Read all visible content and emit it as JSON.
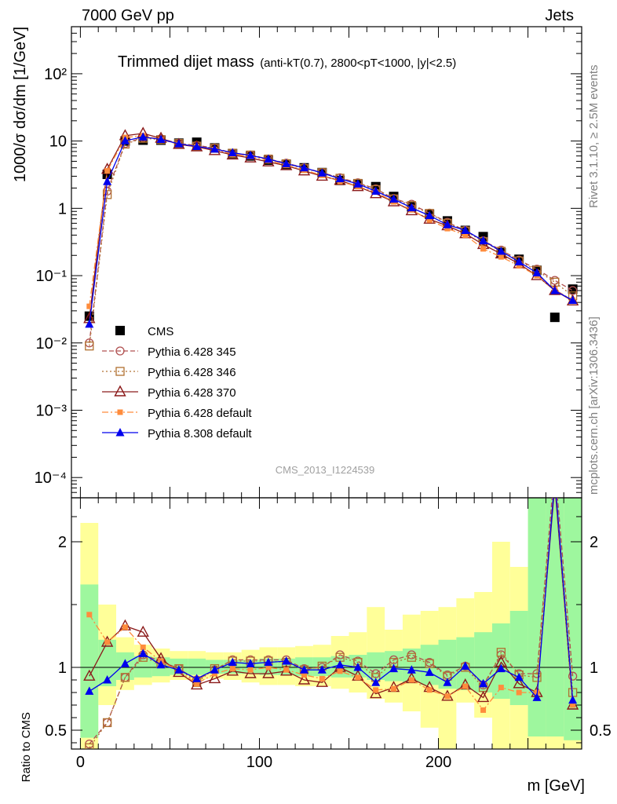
{
  "header": {
    "energy_label": "7000 GeV pp",
    "process_label": "Jets"
  },
  "side": {
    "rivet_label": "Rivet 3.1.10, ≥ 2.5M events",
    "mcplots_label": "mcplots.cern.ch [arXiv:1306.3436]"
  },
  "colors": {
    "cms": "#000000",
    "p345": "#b05050",
    "p346": "#b07030",
    "p370": "#8b1a1a",
    "p64def": "#ff8c3c",
    "p8": "#0000ee",
    "band_inner": "#9ef79e",
    "band_outer": "#ffff99"
  },
  "chart_data": [
    {
      "type": "line",
      "title_main": "Trimmed dijet mass",
      "title_sub": "(anti-kT(0.7), 2800<pT<1000, |y|<2.5)",
      "ylabel": "1000/σ dσ/dm [1/GeV]",
      "yscale": "log",
      "ylim": [
        5e-05,
        500
      ],
      "xlim": [
        -5,
        280
      ],
      "yticks": [
        "10⁻⁴",
        "10⁻³",
        "10⁻²",
        "10⁻¹",
        "1",
        "10",
        "10²"
      ],
      "analysis_label": "CMS_2013_I1224539",
      "x": [
        5,
        15,
        25,
        35,
        45,
        55,
        65,
        75,
        85,
        95,
        105,
        115,
        125,
        135,
        145,
        155,
        165,
        175,
        185,
        195,
        205,
        215,
        225,
        235,
        245,
        255,
        265,
        275
      ],
      "series": [
        {
          "name": "CMS",
          "key": "cms",
          "marker": "square-filled",
          "dash": "",
          "values": [
            0.025,
            3.2,
            10.0,
            10.3,
            10.3,
            9.3,
            9.6,
            7.9,
            6.5,
            6.0,
            5.2,
            4.5,
            4.0,
            3.4,
            2.6,
            2.3,
            2.1,
            1.5,
            1.05,
            0.82,
            0.65,
            0.47,
            0.38,
            0.22,
            0.175,
            0.12,
            0.024,
            0.063
          ]
        },
        {
          "name": "Pythia 6.428 345",
          "key": "p345",
          "marker": "circle-open",
          "dash": "6,3",
          "values": [
            0.01,
            1.8,
            9.2,
            11.3,
            10.8,
            9.2,
            8.6,
            7.9,
            6.6,
            6.2,
            5.4,
            4.7,
            4.0,
            3.4,
            2.85,
            2.4,
            1.95,
            1.4,
            1.15,
            0.85,
            0.62,
            0.47,
            0.33,
            0.24,
            0.17,
            0.125,
            0.085,
            0.06
          ]
        },
        {
          "name": "Pythia 6.428 346",
          "key": "p346",
          "marker": "square-open",
          "dash": "2,3",
          "values": [
            0.009,
            1.6,
            9.0,
            11.0,
            10.5,
            9.2,
            8.4,
            7.8,
            6.6,
            6.2,
            5.4,
            4.6,
            3.9,
            3.4,
            2.8,
            2.35,
            1.9,
            1.38,
            1.1,
            0.84,
            0.6,
            0.46,
            0.32,
            0.23,
            0.165,
            0.12,
            0.08,
            0.05
          ]
        },
        {
          "name": "Pythia 6.428 370",
          "key": "p370",
          "marker": "triangle-open",
          "dash": "",
          "values": [
            0.023,
            3.8,
            12.0,
            13.0,
            11.0,
            8.9,
            8.2,
            7.2,
            6.2,
            5.6,
            4.9,
            4.3,
            3.6,
            3.0,
            2.6,
            2.1,
            1.65,
            1.25,
            0.92,
            0.69,
            0.55,
            0.42,
            0.29,
            0.21,
            0.15,
            0.1,
            0.06,
            0.042
          ]
        },
        {
          "name": "Pythia 6.428 default",
          "key": "p64def",
          "marker": "square-small-filled",
          "dash": "8,3,2,3",
          "values": [
            0.035,
            3.6,
            11.3,
            12.0,
            10.5,
            9.0,
            8.3,
            7.5,
            6.4,
            5.9,
            5.2,
            4.4,
            3.7,
            3.1,
            2.5,
            2.1,
            1.75,
            1.25,
            0.95,
            0.67,
            0.5,
            0.4,
            0.25,
            0.19,
            0.14,
            0.1,
            0.062,
            0.043
          ]
        },
        {
          "name": "Pythia 8.308 default",
          "key": "p8",
          "marker": "triangle-filled",
          "dash": "",
          "values": [
            0.019,
            2.5,
            10.1,
            11.5,
            10.6,
            9.1,
            8.3,
            7.6,
            6.7,
            6.1,
            5.4,
            4.6,
            4.0,
            3.35,
            2.75,
            2.3,
            1.8,
            1.37,
            1.02,
            0.78,
            0.57,
            0.47,
            0.33,
            0.23,
            0.16,
            0.11,
            0.06,
            0.043
          ]
        }
      ]
    },
    {
      "type": "line",
      "ylabel": "Ratio to CMS",
      "xlabel": "m [GeV]",
      "ylim": [
        0.35,
        2.35
      ],
      "xlim": [
        -5,
        280
      ],
      "reference_line": 1,
      "x": [
        5,
        15,
        25,
        35,
        45,
        55,
        65,
        75,
        85,
        95,
        105,
        115,
        125,
        135,
        145,
        155,
        165,
        175,
        185,
        195,
        205,
        215,
        225,
        235,
        245,
        255,
        265,
        275
      ],
      "band_edges": [
        0,
        10,
        20,
        30,
        40,
        50,
        60,
        70,
        80,
        90,
        100,
        110,
        120,
        130,
        140,
        150,
        160,
        170,
        180,
        190,
        200,
        210,
        220,
        230,
        240,
        250,
        260,
        270,
        280
      ],
      "band_inner": [
        [
          0.44,
          1.66
        ],
        [
          0.85,
          1.22
        ],
        [
          0.9,
          1.12
        ],
        [
          0.92,
          1.09
        ],
        [
          0.93,
          1.08
        ],
        [
          0.94,
          1.07
        ],
        [
          0.94,
          1.07
        ],
        [
          0.95,
          1.06
        ],
        [
          0.95,
          1.06
        ],
        [
          0.95,
          1.06
        ],
        [
          0.94,
          1.07
        ],
        [
          0.94,
          1.07
        ],
        [
          0.93,
          1.08
        ],
        [
          0.93,
          1.08
        ],
        [
          0.92,
          1.09
        ],
        [
          0.92,
          1.1
        ],
        [
          0.9,
          1.12
        ],
        [
          0.89,
          1.13
        ],
        [
          0.88,
          1.15
        ],
        [
          0.86,
          1.18
        ],
        [
          0.83,
          1.22
        ],
        [
          0.82,
          1.24
        ],
        [
          0.8,
          1.28
        ],
        [
          0.75,
          1.35
        ],
        [
          0.7,
          1.45
        ],
        [
          0.45,
          2.35
        ],
        [
          0.45,
          2.35
        ],
        [
          0.42,
          2.35
        ]
      ],
      "band_outer": [
        [
          0.35,
          2.15
        ],
        [
          0.7,
          1.5
        ],
        [
          0.82,
          1.24
        ],
        [
          0.86,
          1.18
        ],
        [
          0.88,
          1.15
        ],
        [
          0.9,
          1.13
        ],
        [
          0.9,
          1.13
        ],
        [
          0.91,
          1.12
        ],
        [
          0.9,
          1.12
        ],
        [
          0.88,
          1.14
        ],
        [
          0.86,
          1.16
        ],
        [
          0.86,
          1.16
        ],
        [
          0.85,
          1.17
        ],
        [
          0.85,
          1.18
        ],
        [
          0.83,
          1.25
        ],
        [
          0.8,
          1.28
        ],
        [
          0.75,
          1.48
        ],
        [
          0.72,
          1.3
        ],
        [
          0.65,
          1.42
        ],
        [
          0.52,
          1.45
        ],
        [
          0.35,
          1.48
        ],
        [
          0.72,
          1.55
        ],
        [
          0.6,
          1.6
        ],
        [
          0.35,
          2.0
        ],
        [
          0.35,
          1.8
        ],
        [
          0.35,
          2.35
        ],
        [
          0.35,
          2.35
        ],
        [
          0.35,
          2.35
        ]
      ],
      "series": [
        {
          "name": "Pythia 6.428 345",
          "key": "p345",
          "marker": "circle-open",
          "dash": "6,3",
          "values": [
            0.39,
            0.56,
            0.92,
            1.1,
            1.05,
            0.99,
            0.9,
            0.98,
            1.06,
            1.06,
            1.06,
            1.06,
            0.99,
            1.0,
            1.1,
            1.05,
            0.95,
            1.06,
            1.1,
            1.04,
            0.94,
            1.01,
            0.86,
            1.1,
            0.95,
            0.95,
            2.6,
            0.93
          ]
        },
        {
          "name": "Pythia 6.428 346",
          "key": "p346",
          "marker": "square-open",
          "dash": "2,3",
          "values": [
            0.36,
            0.56,
            0.92,
            1.08,
            1.03,
            0.99,
            0.88,
            0.99,
            1.05,
            1.05,
            1.05,
            1.04,
            0.98,
            1.01,
            1.08,
            1.04,
            0.92,
            1.04,
            1.08,
            1.03,
            0.93,
            1.0,
            0.84,
            1.12,
            0.94,
            0.92,
            2.5,
            0.8
          ]
        },
        {
          "name": "Pythia 6.428 370",
          "key": "p370",
          "marker": "triangle-open",
          "dash": "",
          "values": [
            0.93,
            1.2,
            1.33,
            1.28,
            1.07,
            0.96,
            0.86,
            0.91,
            0.97,
            0.95,
            0.95,
            0.97,
            0.9,
            0.88,
            1.0,
            0.93,
            0.79,
            0.84,
            0.91,
            0.84,
            0.77,
            0.86,
            0.76,
            1.04,
            0.87,
            0.8,
            2.45,
            0.7
          ]
        },
        {
          "name": "Pythia 6.428 default",
          "key": "p64def",
          "marker": "square-small-filled",
          "dash": "8,3,2,3",
          "values": [
            1.42,
            1.2,
            1.32,
            1.16,
            1.05,
            0.97,
            0.87,
            0.95,
            0.99,
            0.98,
            1.0,
            0.98,
            0.94,
            0.91,
            0.97,
            0.92,
            0.82,
            0.83,
            0.9,
            0.82,
            0.77,
            0.85,
            0.66,
            0.84,
            0.8,
            0.8,
            2.5,
            0.7
          ]
        },
        {
          "name": "Pythia 8.308 default",
          "key": "p8",
          "marker": "triangle-filled",
          "dash": "",
          "values": [
            0.81,
            0.9,
            1.03,
            1.11,
            1.02,
            0.98,
            0.91,
            0.98,
            1.04,
            1.03,
            1.04,
            1.05,
            0.98,
            0.98,
            1.02,
            1.0,
            0.88,
            0.99,
            0.98,
            0.96,
            0.88,
            1.01,
            0.87,
            0.99,
            0.92,
            0.76,
            2.5,
            0.74
          ]
        }
      ]
    }
  ]
}
